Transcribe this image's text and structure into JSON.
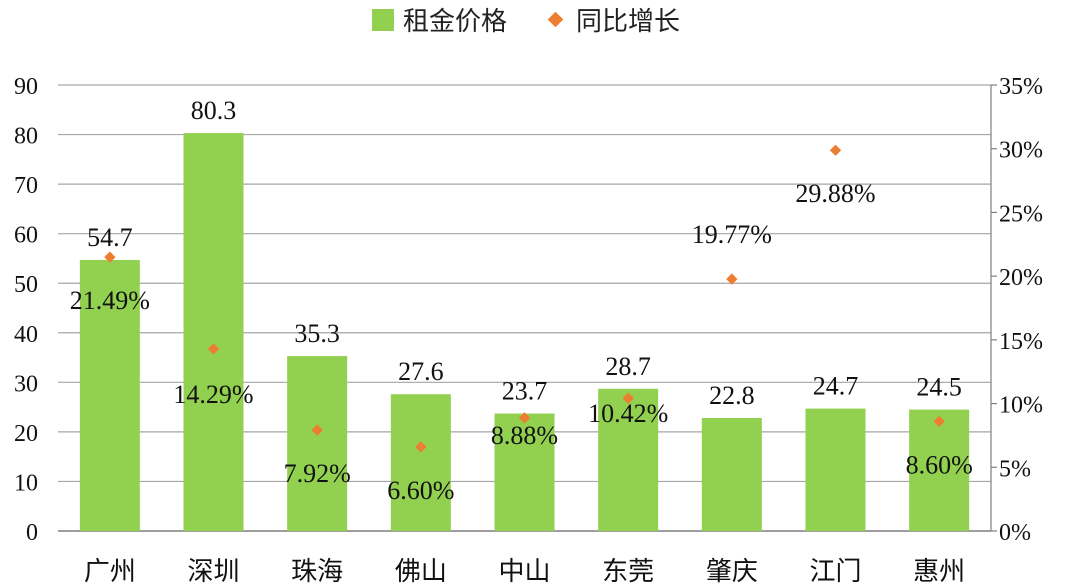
{
  "chart_data": {
    "type": "bar",
    "categories": [
      "广州",
      "深圳",
      "珠海",
      "佛山",
      "中山",
      "东莞",
      "肇庆",
      "江门",
      "惠州"
    ],
    "series": [
      {
        "name": "租金价格",
        "type": "bar",
        "axis": "left",
        "values": [
          54.7,
          80.3,
          35.3,
          27.6,
          23.7,
          28.7,
          22.8,
          24.7,
          24.5
        ],
        "labels": [
          "54.7",
          "80.3",
          "35.3",
          "27.6",
          "23.7",
          "28.7",
          "22.8",
          "24.7",
          "24.5"
        ],
        "color": "#92d050"
      },
      {
        "name": "同比增长",
        "type": "scatter",
        "axis": "right",
        "values": [
          21.49,
          14.29,
          7.92,
          6.6,
          8.88,
          10.42,
          19.77,
          29.88,
          8.6
        ],
        "labels": [
          "21.49%",
          "14.29%",
          "7.92%",
          "6.60%",
          "8.88%",
          "10.42%",
          "19.77%",
          "29.88%",
          "8.60%"
        ],
        "color": "#ed7d31"
      }
    ],
    "y_left": {
      "min": 0,
      "max": 90,
      "step": 10,
      "ticks": [
        "0",
        "10",
        "20",
        "30",
        "40",
        "50",
        "60",
        "70",
        "80",
        "90"
      ]
    },
    "y_right": {
      "min": 0,
      "max": 35,
      "step": 5,
      "ticks": [
        "0%",
        "5%",
        "10%",
        "15%",
        "20%",
        "25%",
        "30%",
        "35%"
      ]
    },
    "grid": true,
    "legend_position": "top-center",
    "title": "",
    "xlabel": "",
    "ylabel": ""
  }
}
